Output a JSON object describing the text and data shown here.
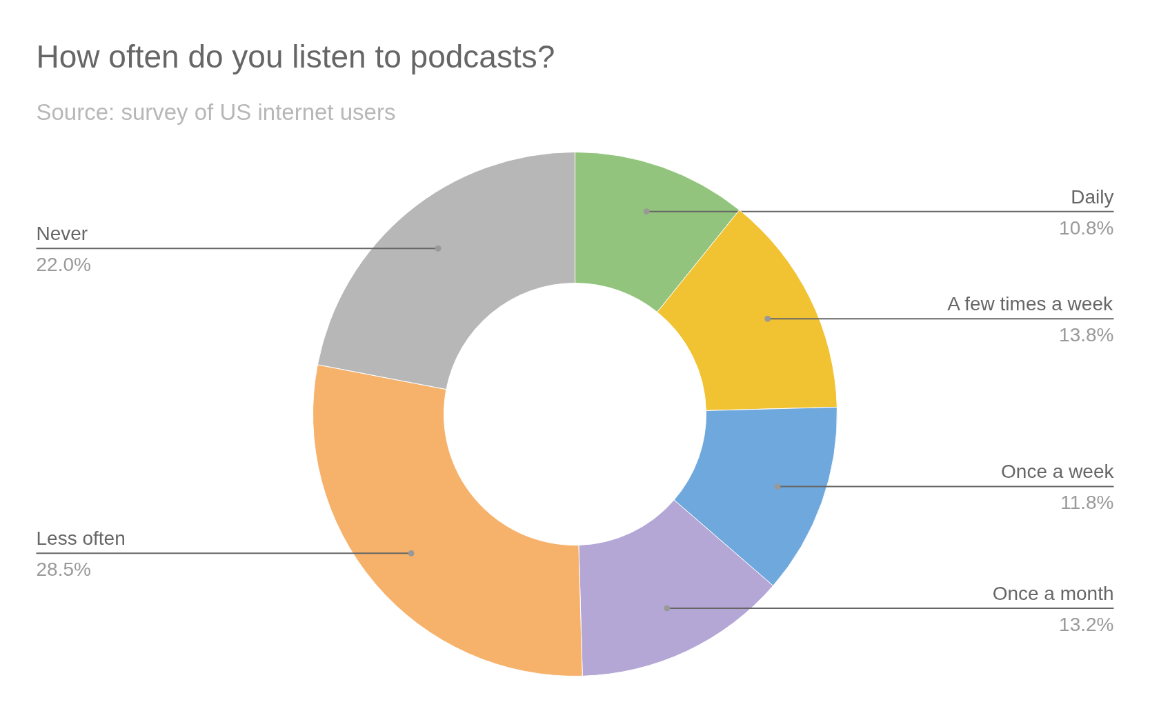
{
  "chart_data": {
    "type": "donut",
    "title": "How often do you listen to podcasts?",
    "subtitle": "Source: survey of US internet users",
    "categories": [
      "Daily",
      "A few times a week",
      "Once a week",
      "Once a month",
      "Less often",
      "Never"
    ],
    "values": [
      10.8,
      13.8,
      11.8,
      13.2,
      28.5,
      22.0
    ],
    "value_labels": [
      "10.8%",
      "13.8%",
      "11.8%",
      "13.2%",
      "28.5%",
      "22.0%"
    ],
    "colors": [
      "#93c47d",
      "#f1c232",
      "#6fa8dc",
      "#b4a7d6",
      "#f6b26b",
      "#b7b7b7"
    ]
  }
}
